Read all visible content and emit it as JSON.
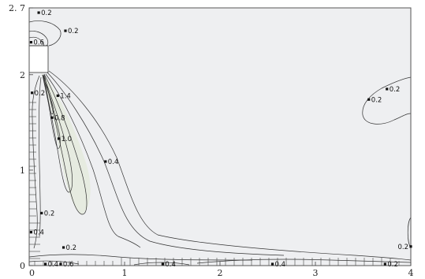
{
  "chart_data": {
    "type": "contour",
    "title": "",
    "xlabel": "",
    "ylabel": "",
    "xlim": [
      0,
      4
    ],
    "ylim": [
      0,
      2.7
    ],
    "grid": false,
    "x_ticks": [
      {
        "value": 0,
        "label": "0"
      },
      {
        "value": 1,
        "label": "1"
      },
      {
        "value": 2,
        "label": "2"
      },
      {
        "value": 3,
        "label": "3"
      },
      {
        "value": 4,
        "label": "4"
      }
    ],
    "y_ticks": [
      {
        "value": 0,
        "label": "0"
      },
      {
        "value": 1,
        "label": "1"
      },
      {
        "value": 2,
        "label": "2"
      },
      {
        "value": 2.7,
        "label": "2. 7"
      }
    ],
    "colors": {
      "plot_fill": "#eeeff1",
      "jet_fill": "#e8ece3",
      "line": "#333333",
      "frame": "#555555"
    },
    "contour_labels": [
      {
        "x": 0.1,
        "y": 2.65,
        "label": "0.2"
      },
      {
        "x": 0.38,
        "y": 2.46,
        "label": "0.2"
      },
      {
        "x": 0.02,
        "y": 2.34,
        "label": "0.6"
      },
      {
        "x": 0.03,
        "y": 1.81,
        "label": "0.2"
      },
      {
        "x": 0.3,
        "y": 1.78,
        "label": "1.4"
      },
      {
        "x": 0.24,
        "y": 1.55,
        "label": "0.8"
      },
      {
        "x": 0.31,
        "y": 1.33,
        "label": "1.0"
      },
      {
        "x": 0.8,
        "y": 1.09,
        "label": "0.4"
      },
      {
        "x": 0.13,
        "y": 0.55,
        "label": "0.2"
      },
      {
        "x": 0.02,
        "y": 0.35,
        "label": "0.4"
      },
      {
        "x": 0.36,
        "y": 0.19,
        "label": "0.2"
      },
      {
        "x": 0.17,
        "y": -0.13,
        "label": "0.4"
      },
      {
        "x": 0.33,
        "y": -0.16,
        "label": "0.6"
      },
      {
        "x": 1.4,
        "y": -0.05,
        "label": "0.4"
      },
      {
        "x": 2.55,
        "y": -0.13,
        "label": "0.4"
      },
      {
        "x": 3.73,
        "y": -0.15,
        "label": "0.2"
      },
      {
        "x": 3.56,
        "y": 1.74,
        "label": "0.2"
      },
      {
        "x": 3.75,
        "y": 1.85,
        "label": "0.2"
      },
      {
        "x": 4.0,
        "y": 0.2,
        "label": "0.2"
      }
    ]
  }
}
